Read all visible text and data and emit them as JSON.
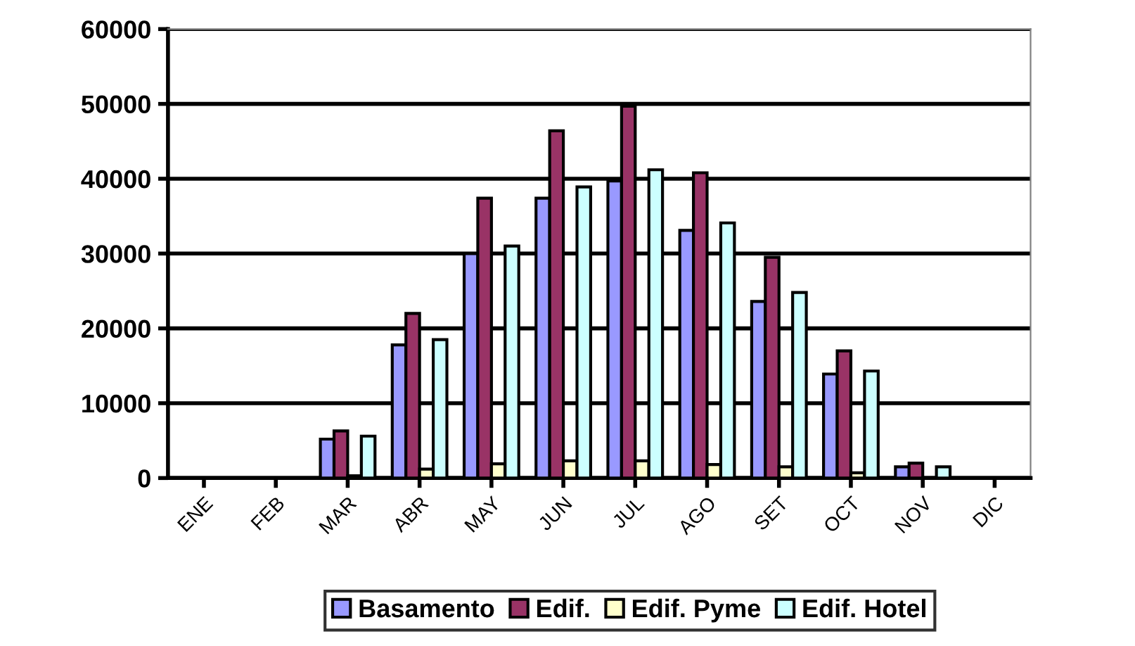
{
  "chart_data": {
    "type": "bar",
    "categories": [
      "ENE",
      "FEB",
      "MAR",
      "ABR",
      "MAY",
      "JUN",
      "JUL",
      "AGO",
      "SET",
      "OCT",
      "NOV",
      "DIC"
    ],
    "series": [
      {
        "name": "Basamento",
        "color": "#9999ff",
        "values": [
          0,
          0,
          5200,
          17800,
          30000,
          37400,
          39700,
          33100,
          23600,
          13900,
          1500,
          0
        ]
      },
      {
        "name": "Edif.",
        "color": "#993366",
        "values": [
          0,
          0,
          6300,
          22000,
          37400,
          46400,
          49700,
          40800,
          29500,
          17000,
          2000,
          0
        ]
      },
      {
        "name": "Edif. Pyme",
        "color": "#ffffcc",
        "values": [
          0,
          0,
          300,
          1200,
          1900,
          2300,
          2300,
          1800,
          1500,
          700,
          0,
          0
        ]
      },
      {
        "name": "Edif. Hotel",
        "color": "#ccffff",
        "values": [
          0,
          0,
          5600,
          18500,
          31000,
          38900,
          41200,
          34100,
          24800,
          14300,
          1500,
          0
        ]
      }
    ],
    "ylim": [
      0,
      60000
    ],
    "yticks": [
      0,
      10000,
      20000,
      30000,
      40000,
      50000,
      60000
    ],
    "grid": "y",
    "legend": "bottom"
  }
}
